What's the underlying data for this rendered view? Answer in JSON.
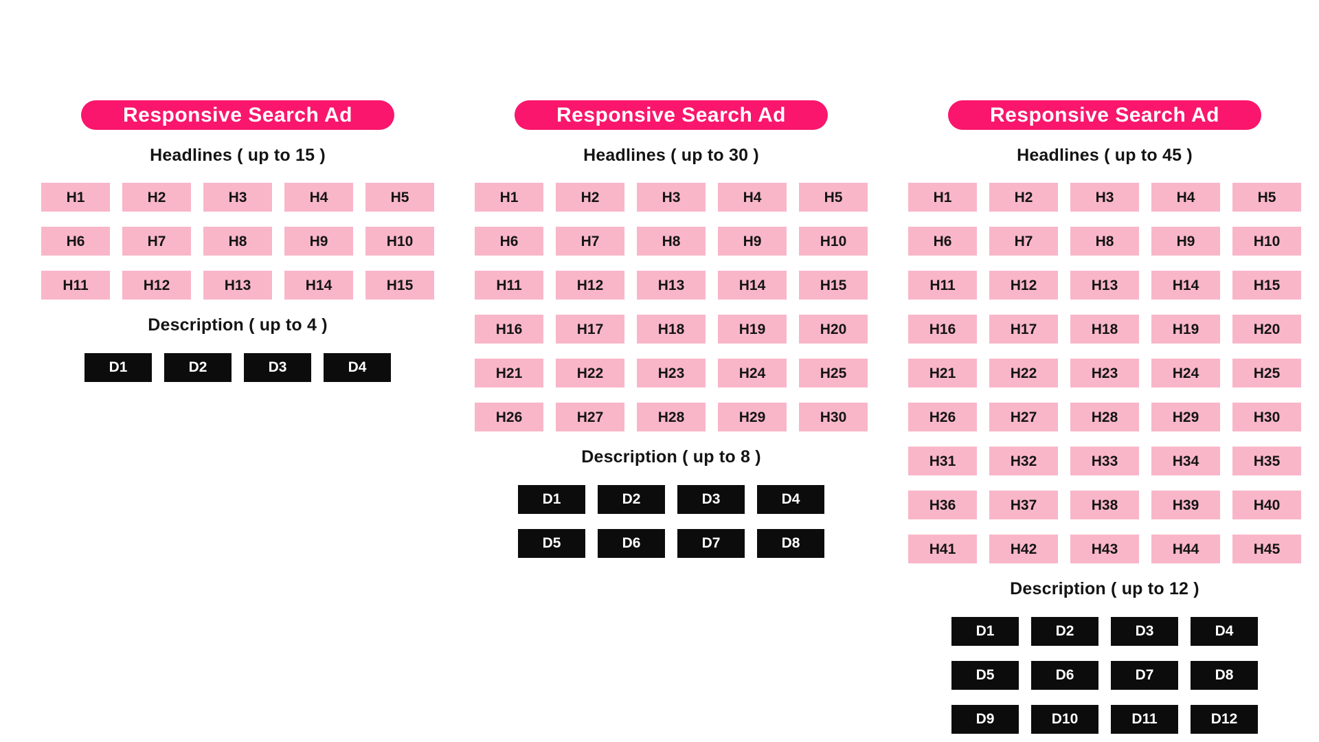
{
  "colors": {
    "background": "#FFFFFF",
    "pill_bg": "#F9166C",
    "pill_text": "#FFFFFF",
    "headline_box_bg": "#F9B6C9",
    "headline_box_text": "#141414",
    "description_box_bg": "#0C0C0C",
    "description_box_text": "#FFFFFF",
    "label_color": "#141414"
  },
  "cards": [
    {
      "title": "Responsive Search Ad",
      "headlines_label": "Headlines ( up to 15 )",
      "headlines_per_row": 5,
      "headlines": [
        "H1",
        "H2",
        "H3",
        "H4",
        "H5",
        "H6",
        "H7",
        "H8",
        "H9",
        "H10",
        "H11",
        "H12",
        "H13",
        "H14",
        "H15"
      ],
      "description_label": "Description ( up to 4 )",
      "descriptions_per_row": 4,
      "descriptions": [
        "D1",
        "D2",
        "D3",
        "D4"
      ]
    },
    {
      "title": "Responsive Search Ad",
      "headlines_label": "Headlines ( up to 30 )",
      "headlines_per_row": 5,
      "headlines": [
        "H1",
        "H2",
        "H3",
        "H4",
        "H5",
        "H6",
        "H7",
        "H8",
        "H9",
        "H10",
        "H11",
        "H12",
        "H13",
        "H14",
        "H15",
        "H16",
        "H17",
        "H18",
        "H19",
        "H20",
        "H21",
        "H22",
        "H23",
        "H24",
        "H25",
        "H26",
        "H27",
        "H28",
        "H29",
        "H30"
      ],
      "description_label": "Description ( up to 8 )",
      "descriptions_per_row": 4,
      "descriptions": [
        "D1",
        "D2",
        "D3",
        "D4",
        "D5",
        "D6",
        "D7",
        "D8"
      ]
    },
    {
      "title": "Responsive Search Ad",
      "headlines_label": "Headlines ( up to 45 )",
      "headlines_per_row": 5,
      "headlines": [
        "H1",
        "H2",
        "H3",
        "H4",
        "H5",
        "H6",
        "H7",
        "H8",
        "H9",
        "H10",
        "H11",
        "H12",
        "H13",
        "H14",
        "H15",
        "H16",
        "H17",
        "H18",
        "H19",
        "H20",
        "H21",
        "H22",
        "H23",
        "H24",
        "H25",
        "H26",
        "H27",
        "H28",
        "H29",
        "H30",
        "H31",
        "H32",
        "H33",
        "H34",
        "H35",
        "H36",
        "H37",
        "H38",
        "H39",
        "H40",
        "H41",
        "H42",
        "H43",
        "H44",
        "H45"
      ],
      "description_label": "Description ( up to 12 )",
      "descriptions_per_row": 4,
      "descriptions": [
        "D1",
        "D2",
        "D3",
        "D4",
        "D5",
        "D6",
        "D7",
        "D8",
        "D9",
        "D10",
        "D11",
        "D12"
      ]
    }
  ]
}
